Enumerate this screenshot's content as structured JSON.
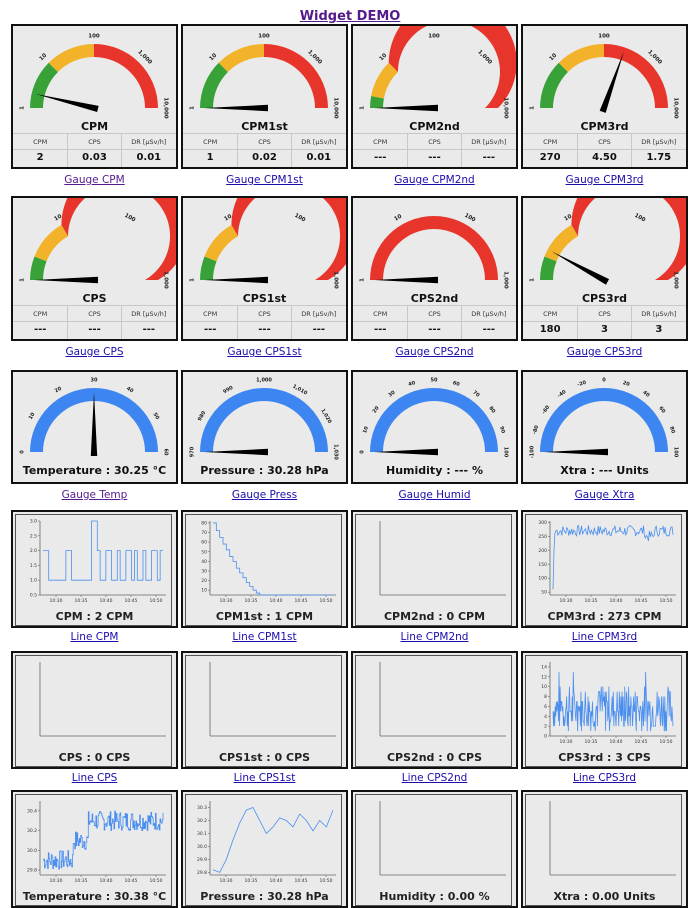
{
  "page": {
    "title": "Widget DEMO"
  },
  "gauge_rows": [
    [
      {
        "name": "CPM",
        "ticks": [
          "1",
          "10",
          "100",
          "1,000",
          "10,000"
        ],
        "needle_value": "2",
        "stats": {
          "headers": [
            "CPM",
            "CPS",
            "DR [µSv/h]"
          ],
          "values": [
            "2",
            "0.03",
            "0.01"
          ]
        },
        "link": "Gauge CPM",
        "visited": true,
        "bands": "cpm"
      },
      {
        "name": "CPM1st",
        "ticks": [
          "1",
          "10",
          "100",
          "1,000",
          "10,000"
        ],
        "needle_value": "1",
        "stats": {
          "headers": [
            "CPM",
            "CPS",
            "DR [µSv/h]"
          ],
          "values": [
            "1",
            "0.02",
            "0.01"
          ]
        },
        "link": "Gauge CPM1st",
        "visited": false,
        "bands": "cpm"
      },
      {
        "name": "CPM2nd",
        "ticks": [
          "1",
          "10",
          "100",
          "1,000",
          "10,000"
        ],
        "needle_value": "0",
        "stats": {
          "headers": [
            "CPM",
            "CPS",
            "DR [µSv/h]"
          ],
          "values": [
            "---",
            "---",
            "---"
          ]
        },
        "link": "Gauge CPM2nd",
        "visited": false,
        "bands": "cpm2"
      },
      {
        "name": "CPM3rd",
        "ticks": [
          "1",
          "10",
          "100",
          "1,000",
          "10,000"
        ],
        "needle_value": "270",
        "stats": {
          "headers": [
            "CPM",
            "CPS",
            "DR [µSv/h]"
          ],
          "values": [
            "270",
            "4.50",
            "1.75"
          ]
        },
        "link": "Gauge CPM3rd",
        "visited": false,
        "bands": "cpm"
      }
    ],
    [
      {
        "name": "CPS",
        "ticks": [
          "1",
          "10",
          "100",
          "1,000"
        ],
        "needle_value": "0",
        "stats": {
          "headers": [
            "CPM",
            "CPS",
            "DR [µSv/h]"
          ],
          "values": [
            "---",
            "---",
            "---"
          ]
        },
        "link": "Gauge CPS",
        "visited": false,
        "bands": "cps"
      },
      {
        "name": "CPS1st",
        "ticks": [
          "1",
          "10",
          "100",
          "1,000"
        ],
        "needle_value": "0",
        "stats": {
          "headers": [
            "CPM",
            "CPS",
            "DR [µSv/h]"
          ],
          "values": [
            "---",
            "---",
            "---"
          ]
        },
        "link": "Gauge CPS1st",
        "visited": false,
        "bands": "cps"
      },
      {
        "name": "CPS2nd",
        "ticks": [
          "1",
          "10",
          "100",
          "1,000"
        ],
        "needle_value": "0",
        "stats": {
          "headers": [
            "CPM",
            "CPS",
            "DR [µSv/h]"
          ],
          "values": [
            "---",
            "---",
            "---"
          ]
        },
        "link": "Gauge CPS2nd",
        "visited": false,
        "bands": "cps2"
      },
      {
        "name": "CPS3rd",
        "ticks": [
          "1",
          "10",
          "100",
          "1,000"
        ],
        "needle_value": "3",
        "stats": {
          "headers": [
            "CPM",
            "CPS",
            "DR [µSv/h]"
          ],
          "values": [
            "180",
            "3",
            "3"
          ]
        },
        "link": "Gauge CPS3rd",
        "visited": false,
        "bands": "cps"
      }
    ]
  ],
  "env_gauges": [
    {
      "text": "Temperature : 30.25 °C",
      "ticks": [
        "0",
        "10",
        "20",
        "30",
        "40",
        "50",
        "60"
      ],
      "needle_fraction": 0.5,
      "link": "Gauge Temp",
      "visited": true
    },
    {
      "text": "Pressure : 30.28 hPa",
      "ticks": [
        "970",
        "980",
        "990",
        "1,000",
        "1,010",
        "1,020",
        "1,030"
      ],
      "needle_fraction": 0.0,
      "link": "Gauge Press",
      "visited": false
    },
    {
      "text": "Humidity : --- %",
      "ticks": [
        "0",
        "10",
        "20",
        "30",
        "40",
        "50",
        "60",
        "70",
        "80",
        "90",
        "100"
      ],
      "needle_fraction": 0.0,
      "link": "Gauge Humid",
      "visited": false
    },
    {
      "text": "Xtra : --- Units",
      "ticks": [
        "-100",
        "-80",
        "-60",
        "-40",
        "-20",
        "0",
        "20",
        "40",
        "60",
        "80",
        "100"
      ],
      "needle_fraction": 0.0,
      "link": "Gauge Xtra",
      "visited": false
    }
  ],
  "line_rows": [
    [
      {
        "caption": "CPM : 2 CPM",
        "link": "Line CPM",
        "yticks": [
          "0.5",
          "1.0",
          "1.5",
          "2.0",
          "2.5",
          "3.0"
        ],
        "ymin": 0.5,
        "ymax": 3.0,
        "xticks": [
          "10:30",
          "10:35",
          "10:40",
          "10:45",
          "10:50"
        ],
        "series_kind": "cpm",
        "step": true
      },
      {
        "caption": "CPM1st : 1 CPM",
        "link": "Line CPM1st",
        "yticks": [
          "10",
          "20",
          "30",
          "40",
          "50",
          "60",
          "70",
          "80"
        ],
        "ymin": 5,
        "ymax": 82,
        "xticks": [
          "10:30",
          "10:35",
          "10:40",
          "10:45",
          "10:50"
        ],
        "series_kind": "cpm1",
        "step": true
      },
      {
        "caption": "CPM2nd : 0 CPM",
        "link": "Line CPM2nd",
        "yticks": [],
        "xticks": [],
        "series_kind": "none"
      },
      {
        "caption": "CPM3rd : 273 CPM",
        "link": "Line CPM3rd",
        "yticks": [
          "50",
          "100",
          "150",
          "200",
          "250",
          "300"
        ],
        "ymin": 40,
        "ymax": 305,
        "xticks": [
          "10:30",
          "10:35",
          "10:40",
          "10:45",
          "10:50"
        ],
        "series_kind": "cpm3",
        "step": false
      }
    ],
    [
      {
        "caption": "CPS : 0 CPS",
        "link": "Line CPS",
        "yticks": [],
        "xticks": [],
        "series_kind": "none"
      },
      {
        "caption": "CPS1st : 0 CPS",
        "link": "Line CPS1st",
        "yticks": [],
        "xticks": [],
        "series_kind": "none"
      },
      {
        "caption": "CPS2nd : 0 CPS",
        "link": "Line CPS2nd",
        "yticks": [],
        "xticks": [],
        "series_kind": "none"
      },
      {
        "caption": "CPS3rd : 3 CPS",
        "link": "Line CPS3rd",
        "yticks": [
          "0",
          "2",
          "4",
          "6",
          "8",
          "10",
          "12",
          "14"
        ],
        "ymin": 0,
        "ymax": 15,
        "xticks": [
          "10:30",
          "10:35",
          "10:40",
          "10:45",
          "10:50"
        ],
        "series_kind": "cps3",
        "step": false
      }
    ],
    [
      {
        "caption": "Temperature : 30.38 °C",
        "link": "",
        "yticks": [
          "29.8",
          "30.0",
          "30.2",
          "30.4"
        ],
        "ymin": 29.75,
        "ymax": 30.5,
        "xticks": [
          "10:30",
          "10:35",
          "10:40",
          "10:45",
          "10:50"
        ],
        "series_kind": "temp",
        "step": true
      },
      {
        "caption": "Pressure : 30.28 hPa",
        "link": "",
        "yticks": [
          "29.8",
          "29.9",
          "30.0",
          "30.1",
          "30.2",
          "30.3"
        ],
        "ymin": 29.78,
        "ymax": 30.35,
        "xticks": [
          "10:30",
          "10:35",
          "10:40",
          "10:45",
          "10:50"
        ],
        "series_kind": "press",
        "step": false
      },
      {
        "caption": "Humidity : 0.00 %",
        "link": "",
        "yticks": [],
        "xticks": [],
        "series_kind": "none"
      },
      {
        "caption": "Xtra : 0.00 Units",
        "link": "",
        "yticks": [],
        "xticks": [],
        "series_kind": "none"
      }
    ]
  ],
  "colors": {
    "green": "#38a238",
    "yellow": "#f2b32a",
    "red": "#e8352c",
    "blue": "#3d86f2",
    "line": "#4a8ff0",
    "needle": "#000000"
  }
}
